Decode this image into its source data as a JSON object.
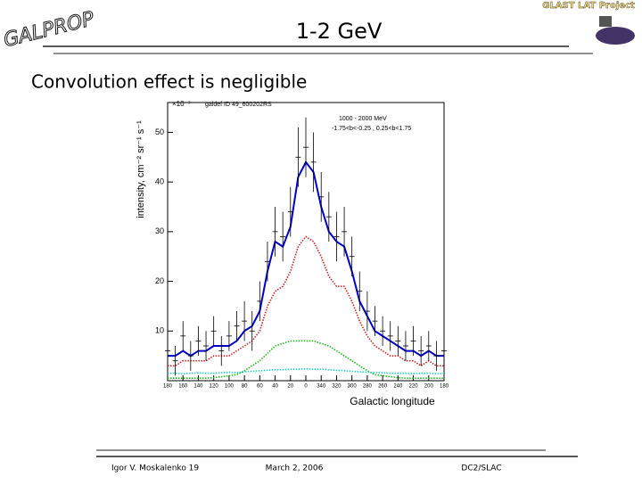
{
  "header": {
    "logo": "GALPROP",
    "title": "1-2 GeV",
    "project": "GLAST LAT Project",
    "subtitle": "Convolution effect is negligible"
  },
  "footer": {
    "author": "Igor V. Moskalenko 19",
    "date": "March 2, 2006",
    "venue": "DC2/SLAC"
  },
  "chart_data": {
    "type": "line",
    "ylabel": "intensity, cm⁻² sr⁻¹ s⁻¹",
    "xlabel": "Galactic longitude",
    "yscale_label": "×10⁻⁷",
    "annotations": [
      "galdef ID 49_600202RS",
      "1000 - 2000 MeV",
      "-1.75<b<-0.25 , 0.25<b<1.75"
    ],
    "xlim": [
      180,
      -180
    ],
    "ylim": [
      0,
      56
    ],
    "xticks": [
      180,
      160,
      140,
      120,
      100,
      80,
      60,
      40,
      20,
      0,
      {
        "value": -20,
        "label": "340"
      },
      {
        "value": -40,
        "label": "320"
      },
      {
        "value": -60,
        "label": "300"
      },
      {
        "value": -80,
        "label": "280"
      },
      {
        "value": -100,
        "label": "260"
      },
      {
        "value": -120,
        "label": "240"
      },
      {
        "value": -140,
        "label": "220"
      },
      {
        "value": -160,
        "label": "200"
      },
      {
        "value": -180,
        "label": "180"
      }
    ],
    "yticks": [
      10,
      20,
      30,
      40,
      50
    ],
    "x": [
      180,
      170,
      160,
      150,
      140,
      130,
      120,
      110,
      100,
      90,
      80,
      70,
      60,
      50,
      40,
      30,
      20,
      10,
      0,
      -10,
      -20,
      -30,
      -40,
      -50,
      -60,
      -70,
      -80,
      -90,
      -100,
      -110,
      -120,
      -130,
      -140,
      -150,
      -160,
      -170,
      -180
    ],
    "series": [
      {
        "color": "#0000cc",
        "style": "solid",
        "values": [
          5,
          5,
          6,
          5,
          6,
          6,
          7,
          7,
          7,
          8,
          10,
          11,
          14,
          22,
          28,
          27,
          31,
          41,
          44,
          42,
          35,
          30,
          28,
          27,
          22,
          16,
          13,
          10,
          9,
          8,
          7,
          6,
          6,
          5,
          6,
          5,
          5
        ]
      },
      {
        "color": "#cc2222",
        "style": "dotted",
        "values": [
          3,
          3,
          4,
          4,
          4,
          4,
          5,
          5,
          5,
          6,
          7,
          8,
          10,
          15,
          18,
          19,
          22,
          27,
          29,
          28,
          25,
          21,
          19,
          19,
          16,
          12,
          9,
          7,
          6,
          5,
          5,
          4,
          4,
          3,
          4,
          3,
          3
        ]
      },
      {
        "color": "#22bb22",
        "style": "dotted",
        "values": [
          0.5,
          0.5,
          0.5,
          0.5,
          0.5,
          0.5,
          0.6,
          0.8,
          1,
          1.2,
          2,
          3,
          4,
          5.5,
          7,
          7.5,
          8,
          8,
          8,
          8,
          7.5,
          7,
          6,
          5,
          4,
          3,
          2,
          1.2,
          1,
          0.8,
          0.6,
          0.5,
          0.5,
          0.5,
          0.5,
          0.5,
          0.5
        ]
      },
      {
        "color": "#22cccc",
        "style": "dotted",
        "values": [
          1.5,
          1.5,
          1.4,
          1.5,
          1.6,
          1.5,
          1.5,
          1.6,
          1.7,
          1.6,
          1.8,
          1.9,
          2,
          2.1,
          2.2,
          2.2,
          2.3,
          2.3,
          2.4,
          2.3,
          2.3,
          2.2,
          2.1,
          2,
          1.9,
          1.8,
          1.7,
          1.6,
          1.6,
          1.5,
          1.5,
          1.5,
          1.4,
          1.5,
          1.5,
          1.4,
          1.5
        ]
      },
      {
        "color": "#000000",
        "style": "points",
        "values": [
          6,
          4,
          9,
          5,
          8,
          7,
          10,
          6,
          9,
          11,
          12,
          10,
          16,
          24,
          30,
          29,
          34,
          45,
          47,
          44,
          37,
          33,
          29,
          30,
          25,
          18,
          14,
          12,
          10,
          9,
          8,
          7,
          8,
          6,
          7,
          5,
          6
        ],
        "errors": [
          3,
          3,
          3,
          3,
          3,
          3,
          3,
          3,
          3,
          3,
          4,
          4,
          4,
          4,
          5,
          5,
          5,
          6,
          6,
          6,
          5,
          5,
          5,
          5,
          4,
          4,
          4,
          3,
          3,
          3,
          3,
          3,
          3,
          3,
          3,
          3,
          3
        ]
      }
    ]
  }
}
